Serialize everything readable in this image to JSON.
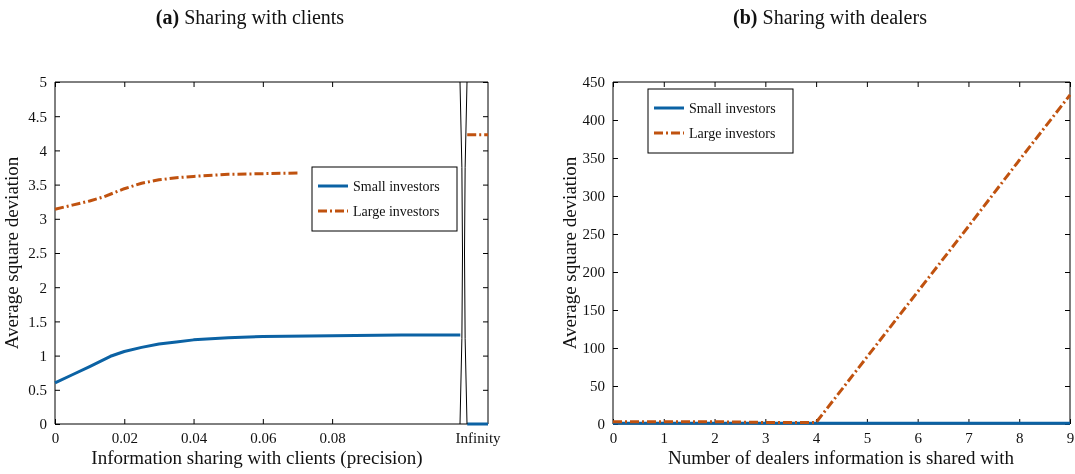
{
  "chart_data": [
    {
      "type": "line",
      "title": "(a) Sharing with clients",
      "xlabel": "Information sharing with clients (precision)",
      "ylabel": "Average square deviation",
      "xlim": [
        0,
        0.125
      ],
      "xticks": [
        0,
        0.02,
        0.04,
        0.06,
        0.08,
        {
          "value": 0.122,
          "label": "Infinity"
        }
      ],
      "ylim": [
        0,
        5
      ],
      "yticks": [
        0,
        0.5,
        1,
        1.5,
        2,
        2.5,
        3,
        3.5,
        4,
        4.5,
        5
      ],
      "legend": "top right",
      "series": [
        {
          "name": "Small investors",
          "color": "#0b62a4",
          "line_style": "solid",
          "x": [
            0,
            0.005,
            0.01,
            0.016,
            0.02,
            0.025,
            0.03,
            0.035,
            0.04,
            0.05,
            0.06,
            0.08,
            0.1,
            0.117,
            0.118,
            0.119,
            0.125
          ],
          "values": [
            0.6,
            0.72,
            0.84,
            0.99,
            1.06,
            1.12,
            1.17,
            1.2,
            1.23,
            1.26,
            1.28,
            1.29,
            1.3,
            1.3,
            null,
            0,
            0
          ]
        },
        {
          "name": "Large investors",
          "color": "#c0520f",
          "line_style": "dashed",
          "x": [
            0,
            0.005,
            0.01,
            0.014,
            0.02,
            0.025,
            0.03,
            0.035,
            0.04,
            0.05,
            0.06,
            0.07,
            0.1,
            0.119,
            0.125
          ],
          "values": [
            3.14,
            3.2,
            3.26,
            3.32,
            3.44,
            3.52,
            3.57,
            3.6,
            3.62,
            3.65,
            3.66,
            3.67,
            null,
            4.23,
            4.23
          ]
        }
      ]
    },
    {
      "type": "line",
      "title": "(b) Sharing with dealers",
      "xlabel": "Number of dealers information is shared with",
      "ylabel": "Average square deviation",
      "xlim": [
        0,
        9
      ],
      "xticks": [
        0,
        1,
        2,
        3,
        4,
        5,
        6,
        7,
        8,
        9
      ],
      "ylim": [
        0,
        450
      ],
      "yticks": [
        0,
        50,
        100,
        150,
        200,
        250,
        300,
        350,
        400,
        450
      ],
      "legend": "top left",
      "series": [
        {
          "name": "Small investors",
          "color": "#0b62a4",
          "line_style": "solid",
          "x": [
            0,
            1,
            2,
            3,
            4,
            5,
            6,
            7,
            8,
            9
          ],
          "values": [
            1,
            1,
            1,
            1,
            1,
            1,
            1,
            1,
            1,
            1
          ]
        },
        {
          "name": "Large investors",
          "color": "#c0520f",
          "line_style": "dashed",
          "x": [
            0,
            1,
            2,
            3,
            4,
            5,
            6,
            7,
            8,
            9
          ],
          "values": [
            3,
            3,
            3,
            2,
            2,
            88,
            174,
            260,
            347,
            433
          ]
        }
      ]
    }
  ]
}
